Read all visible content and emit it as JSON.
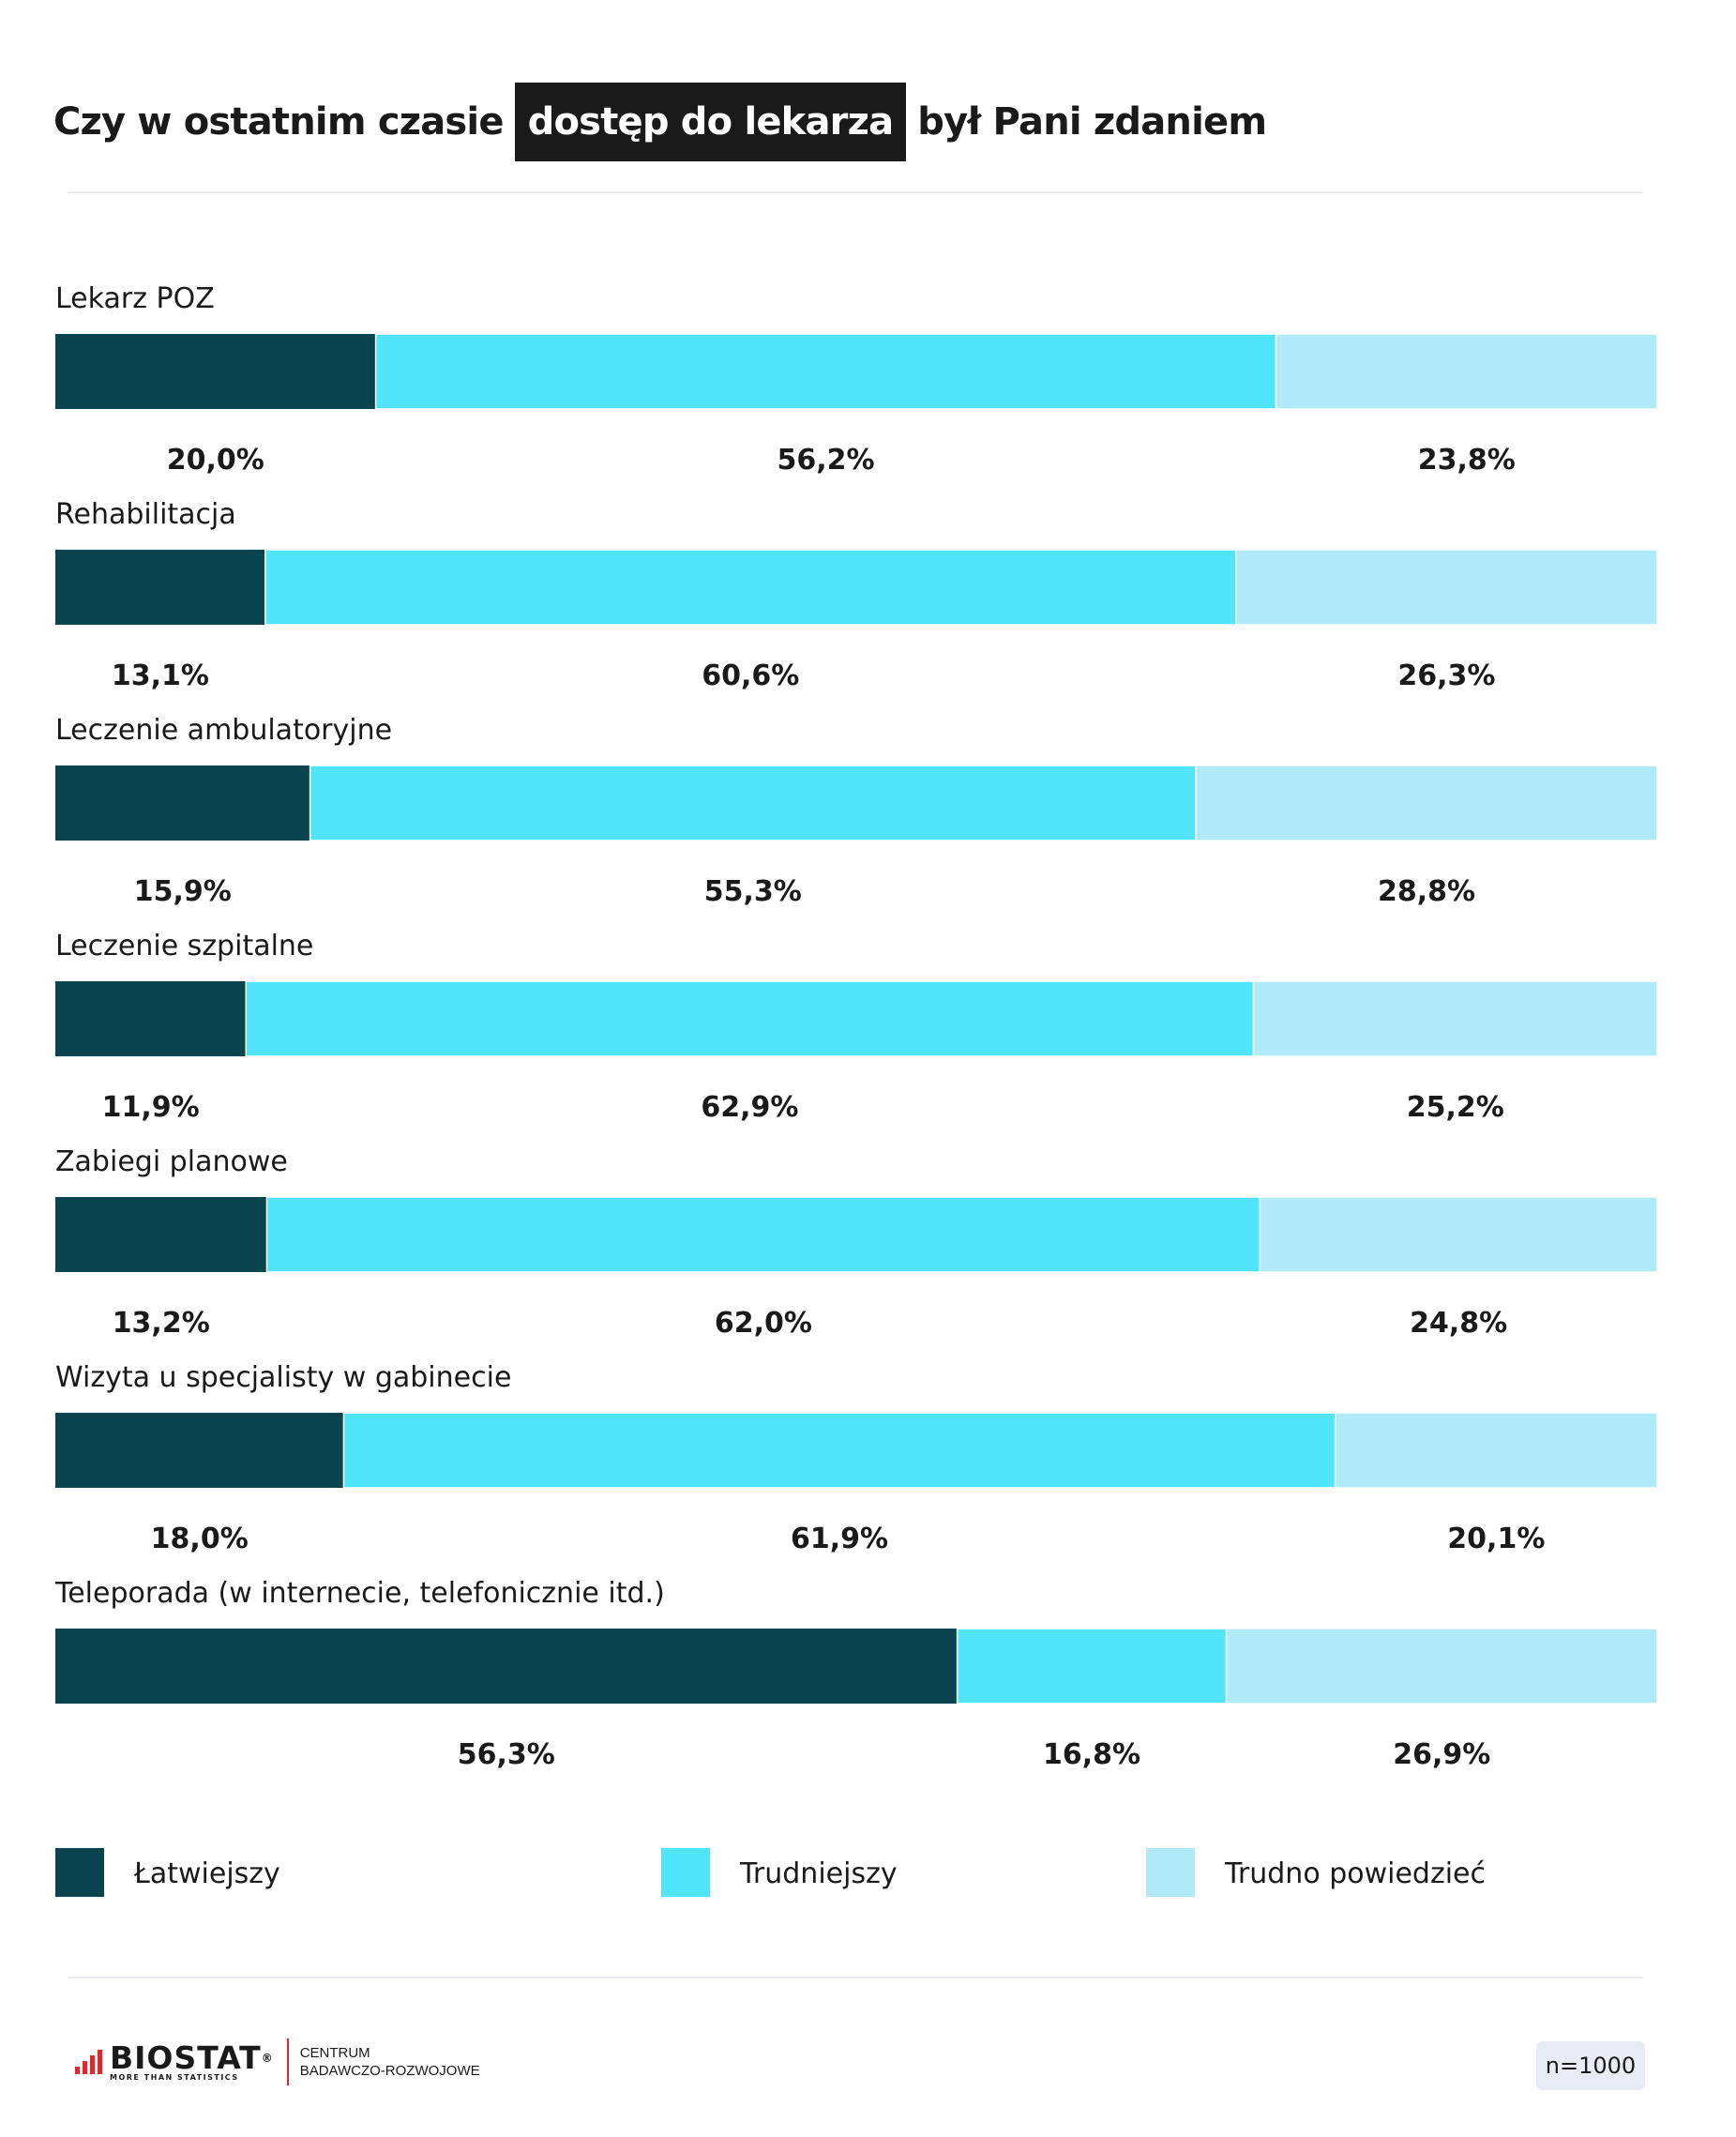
{
  "header": {
    "title_before": "Czy w ostatnim czasie",
    "title_highlight": "dostęp do lekarza",
    "title_after": "był Pani zdaniem"
  },
  "colors": {
    "latwiejszy": "#09444f",
    "trudniejszy": "#51e5fb",
    "trudno_powiedziec": "#b0e9f7"
  },
  "chart_data": {
    "type": "bar",
    "orientation": "horizontal",
    "stacked": "100%",
    "categories": [
      "Lekarz POZ",
      "Rehabilitacja",
      "Leczenie ambulatoryjne",
      "Leczenie szpitalne",
      "Zabiegi planowe",
      "Wizyta u specjalisty w gabinecie",
      "Teleporada (w internecie, telefonicznie itd.)"
    ],
    "series": [
      {
        "name": "Łatwiejszy",
        "values": [
          20.0,
          13.1,
          15.9,
          11.9,
          13.2,
          18.0,
          56.3
        ],
        "labels": [
          "20,0%",
          "13,1%",
          "15,9%",
          "11,9%",
          "13,2%",
          "18,0%",
          "56,3%"
        ]
      },
      {
        "name": "Trudniejszy",
        "values": [
          56.2,
          60.6,
          55.3,
          62.9,
          62.0,
          61.9,
          16.8
        ],
        "labels": [
          "56,2%",
          "60,6%",
          "55,3%",
          "62,9%",
          "62,0%",
          "61,9%",
          "16,8%"
        ]
      },
      {
        "name": "Trudno powiedzieć",
        "values": [
          23.8,
          26.3,
          28.8,
          25.2,
          24.8,
          20.1,
          26.9
        ],
        "labels": [
          "23,8%",
          "26,3%",
          "28,8%",
          "25,2%",
          "24,8%",
          "20,1%",
          "26,9%"
        ]
      }
    ],
    "xlim": [
      0,
      100
    ],
    "legend_position": "bottom",
    "grid": false
  },
  "footer": {
    "logo_name": "BIOSTAT",
    "logo_registered": "®",
    "logo_tagline": "MORE THAN STATISTICS",
    "center_line1": "CENTRUM",
    "center_line2": "BADAWCZO-ROZWOJOWE",
    "sample_size": "n=1000"
  }
}
